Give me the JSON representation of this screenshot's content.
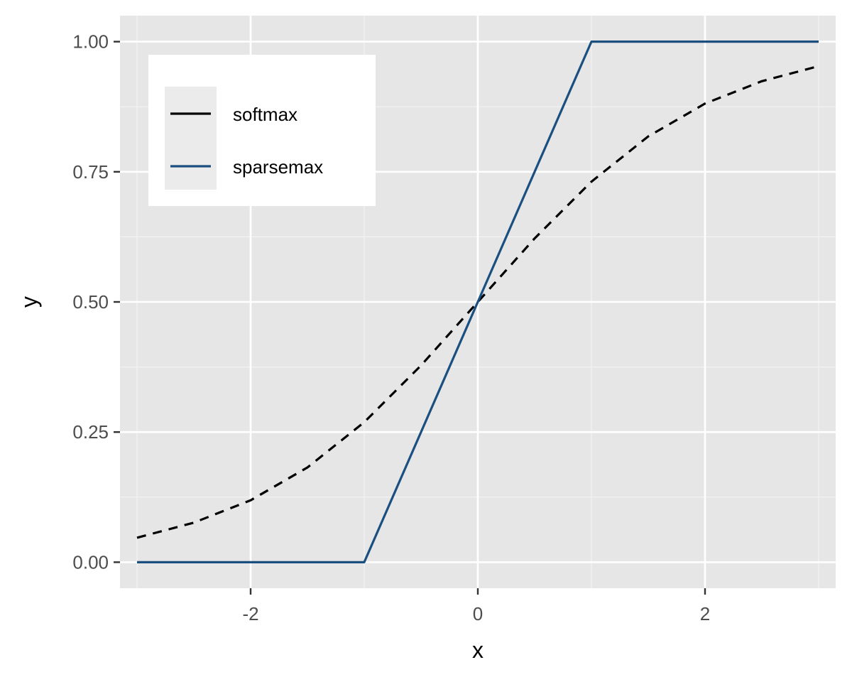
{
  "chart_data": {
    "type": "line",
    "xlabel": "x",
    "ylabel": "y",
    "xlim": [
      -3.15,
      3.15
    ],
    "ylim": [
      -0.05,
      1.05
    ],
    "x_ticks": [
      -2,
      0,
      2
    ],
    "x_tick_labels": [
      "-2",
      "0",
      "2"
    ],
    "y_ticks": [
      0,
      0.25,
      0.5,
      0.75,
      1
    ],
    "y_tick_labels": [
      "0.00",
      "0.25",
      "0.50",
      "0.75",
      "1.00"
    ],
    "x_minor_gridlines": [
      -3,
      -1,
      1,
      3
    ],
    "y_minor_gridlines": [
      0.125,
      0.375,
      0.625,
      0.875
    ],
    "grid": true,
    "legend_position": "top-left",
    "legend": [
      {
        "label": "softmax",
        "color": "#000000"
      },
      {
        "label": "sparsemax",
        "color": "#1a4f80"
      }
    ],
    "series": [
      {
        "name": "softmax",
        "color": "#000000",
        "dash": "dashed",
        "x": [
          -3,
          -2.5,
          -2,
          -1.5,
          -1,
          -0.5,
          0,
          0.5,
          1,
          1.5,
          2,
          2.5,
          3
        ],
        "y": [
          0.047,
          0.076,
          0.119,
          0.182,
          0.269,
          0.378,
          0.5,
          0.622,
          0.731,
          0.818,
          0.881,
          0.924,
          0.953
        ]
      },
      {
        "name": "sparsemax",
        "color": "#1a4f80",
        "dash": "solid",
        "x": [
          -3,
          -1,
          1,
          3
        ],
        "y": [
          0,
          0,
          1,
          1
        ]
      }
    ]
  }
}
